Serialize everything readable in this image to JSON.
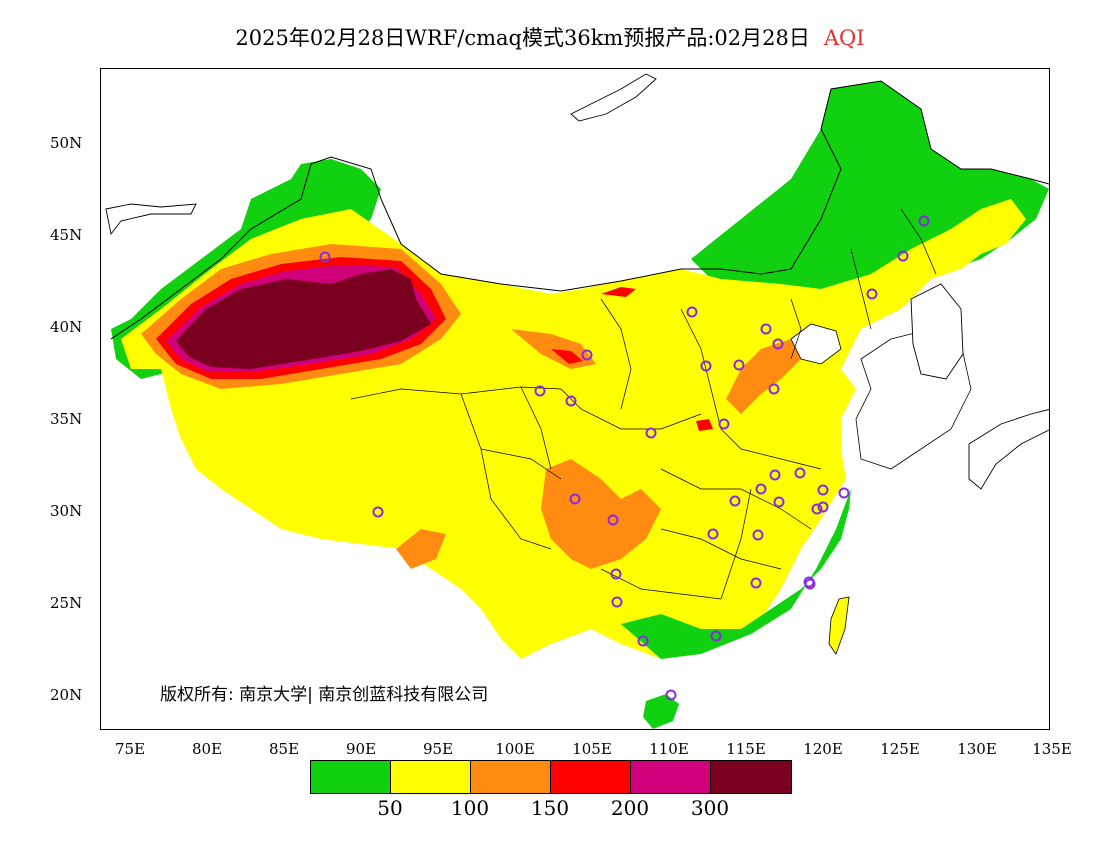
{
  "title": {
    "text": "2025年02月28日WRF/cmaq模式36km预报产品:02月28日",
    "variable": "AQI",
    "variable_color": "#e03030"
  },
  "axes": {
    "lat_labels": [
      "50N",
      "45N",
      "40N",
      "35N",
      "30N",
      "25N",
      "20N"
    ],
    "lon_labels": [
      "75E",
      "80E",
      "85E",
      "90E",
      "95E",
      "100E",
      "105E",
      "110E",
      "115E",
      "120E",
      "125E",
      "130E",
      "135E"
    ]
  },
  "copyright": "版权所有: 南京大学| 南京创蓝科技有限公司",
  "legend": {
    "colors": [
      "#10d010",
      "#ffff00",
      "#ff8c10",
      "#ff0000",
      "#d0007a",
      "#7a0020"
    ],
    "ticks": [
      "50",
      "100",
      "150",
      "200",
      "300"
    ]
  },
  "colors": {
    "good": "#10d010",
    "moderate": "#ffff00",
    "unhealthy_sensitive": "#ff8c10",
    "unhealthy": "#ff0000",
    "very_unhealthy": "#d0007a",
    "hazardous": "#7a0020",
    "city_marker": "#8a2be2"
  },
  "map_features": {
    "city_markers": 37
  }
}
